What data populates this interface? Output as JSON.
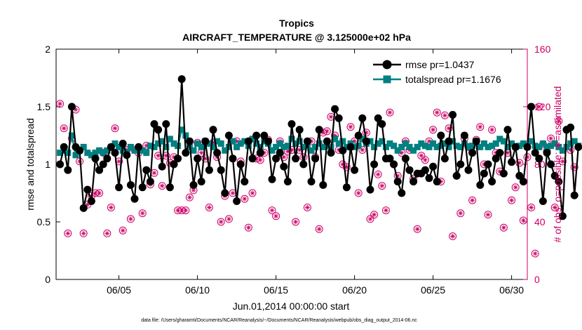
{
  "chart_data": {
    "type": "line",
    "title": "Tropics",
    "subtitle": "AIRCRAFT_TEMPERATURE @ 3.125000e+02 hPa",
    "xlabel": "Jun.01,2014 00:00:00 start",
    "ylabel_left": "rmse and totalspread",
    "ylabel_right": "# of obs: o=possible; ∗=assimilated",
    "footer": "data file: /Users/gharamti/Documents/NCAR/Reanalysis/~/Documents/NCAR/Reanalysis/webpub/obs_diag_output_2014-06.nc",
    "xlim": [
      1,
      31
    ],
    "ylim_left": [
      0,
      2
    ],
    "ylim_right": [
      0,
      160
    ],
    "x_ticks": [
      5,
      10,
      15,
      20,
      25,
      30
    ],
    "x_tick_labels": [
      "06/05",
      "06/10",
      "06/15",
      "06/20",
      "06/25",
      "06/30"
    ],
    "y_ticks_left": [
      0,
      0.5,
      1,
      1.5,
      2
    ],
    "y_tick_labels_left": [
      "0",
      "0.5",
      "1",
      "1.5",
      "2"
    ],
    "y_ticks_right": [
      0,
      40,
      80,
      120,
      160
    ],
    "y_tick_labels_right": [
      "0",
      "40",
      "80",
      "120",
      "160"
    ],
    "legend": {
      "location": "top-right",
      "entries": [
        "rmse pr=1.0437",
        "totalspread pr=1.1676"
      ]
    },
    "colors": {
      "rmse": "#000000",
      "totalspread": "#008080",
      "obs": "#cc0066"
    },
    "x_start": 1.25,
    "x_step": 0.25,
    "series": [
      {
        "name": "rmse pr=1.0437",
        "axis": "left",
        "values": [
          1.0,
          1.15,
          0.95,
          1.5,
          1.15,
          1.12,
          0.62,
          0.78,
          0.68,
          1.05,
          0.95,
          1.0,
          1.05,
          1.15,
          1.1,
          0.8,
          1.18,
          1.08,
          0.82,
          0.7,
          1.15,
          0.8,
          0.95,
          0.85,
          1.35,
          1.3,
          0.98,
          1.35,
          0.8,
          1.0,
          1.05,
          1.74,
          1.1,
          1.2,
          0.82,
          1.05,
          0.85,
          1.2,
          0.95,
          1.3,
          1.1,
          0.95,
          0.75,
          1.25,
          1.05,
          0.68,
          1.0,
          0.85,
          1.2,
          1.05,
          1.25,
          1.1,
          1.25,
          1.2,
          0.87,
          1.05,
          1.1,
          0.98,
          0.85,
          1.35,
          1.05,
          1.3,
          1.0,
          1.2,
          0.85,
          1.05,
          1.3,
          0.82,
          1.2,
          1.1,
          1.48,
          1.4,
          1.12,
          0.8,
          1.15,
          0.95,
          1.25,
          1.4,
          1.2,
          0.78,
          1.0,
          1.4,
          1.35,
          1.05,
          1.05,
          1.0,
          0.85,
          0.75,
          1.05,
          0.95,
          0.85,
          0.92,
          0.92,
          0.95,
          0.88,
          0.98,
          0.85,
          1.25,
          1.05,
          1.2,
          1.43,
          0.9,
          1.0,
          1.25,
          0.95,
          1.1,
          1.2,
          0.82,
          0.92,
          1.0,
          0.85,
          1.05,
          1.1,
          0.92,
          1.3,
          1.02,
          1.15,
          0.9,
          0.85,
          1.15,
          1.5,
          1.1,
          1.05,
          0.68,
          1.1,
          1.0,
          0.9,
          0.85,
          0.55,
          1.3,
          1.32,
          0.73,
          1.15
        ]
      },
      {
        "name": "totalspread pr=1.1676",
        "axis": "left",
        "values": [
          1.1,
          1.12,
          1.1,
          1.25,
          1.08,
          1.12,
          1.15,
          1.1,
          1.08,
          1.1,
          1.12,
          1.1,
          1.12,
          1.15,
          1.18,
          1.15,
          1.12,
          1.1,
          1.15,
          1.12,
          1.14,
          1.12,
          1.1,
          1.16,
          1.15,
          1.18,
          1.2,
          1.15,
          1.22,
          1.18,
          1.16,
          1.3,
          1.25,
          1.15,
          1.12,
          1.18,
          1.15,
          1.2,
          1.18,
          1.15,
          1.2,
          1.18,
          1.12,
          1.15,
          1.2,
          1.15,
          1.18,
          1.2,
          1.16,
          1.22,
          1.18,
          1.15,
          1.2,
          1.18,
          1.12,
          1.15,
          1.18,
          1.15,
          1.16,
          1.22,
          1.18,
          1.2,
          1.15,
          1.18,
          1.12,
          1.15,
          1.18,
          1.15,
          1.16,
          1.15,
          1.22,
          1.18,
          1.2,
          1.15,
          1.18,
          1.15,
          1.16,
          1.22,
          1.18,
          1.2,
          1.15,
          1.18,
          1.2,
          1.15,
          1.18,
          1.16,
          1.12,
          1.15,
          1.18,
          1.15,
          1.12,
          1.15,
          1.18,
          1.16,
          1.15,
          1.18,
          1.15,
          1.16,
          1.18,
          1.15,
          1.2,
          1.16,
          1.15,
          1.18,
          1.15,
          1.16,
          1.2,
          1.15,
          1.18,
          1.15,
          1.16,
          1.18,
          1.22,
          1.2,
          1.15,
          1.18,
          1.15,
          1.16,
          1.18,
          1.15,
          1.2,
          1.16,
          1.15,
          1.18,
          1.15,
          1.16,
          1.18,
          1.15,
          1.12,
          1.15,
          1.18,
          1.2,
          1.16
        ]
      },
      {
        "name": "",
        "axis": "right",
        "values": [
          122,
          105,
          32,
          98,
          118,
          82,
          32,
          52,
          58,
          60,
          60,
          88,
          32,
          50,
          105,
          82,
          34,
          90,
          42,
          90,
          88,
          46,
          93,
          66,
          74,
          86,
          65,
          86,
          81,
          85,
          48,
          48,
          48,
          57,
          62,
          95,
          88,
          84,
          50,
          95,
          85,
          40,
          58,
          42,
          60,
          96,
          82,
          56,
          36,
          60,
          84,
          83,
          88,
          97,
          48,
          44,
          96,
          85,
          89,
          90,
          40,
          90,
          85,
          50,
          96,
          85,
          35,
          102,
          103,
          113,
          100,
          90,
          80,
          78,
          106,
          96,
          60,
          90,
          102,
          42,
          45,
          73,
          65,
          48,
          116,
          80,
          72,
          88,
          96,
          90,
          70,
          35,
          86,
          83,
          96,
          104,
          116,
          68,
          114,
          105,
          30,
          72,
          46,
          98,
          92,
          55,
          97,
          106,
          80,
          45,
          104,
          88,
          75,
          36,
          88,
          55,
          64,
          81,
          41,
          85,
          50,
          18,
          120,
          94,
          89,
          98,
          50,
          110,
          82,
          104,
          90,
          78
        ]
      }
    ]
  }
}
